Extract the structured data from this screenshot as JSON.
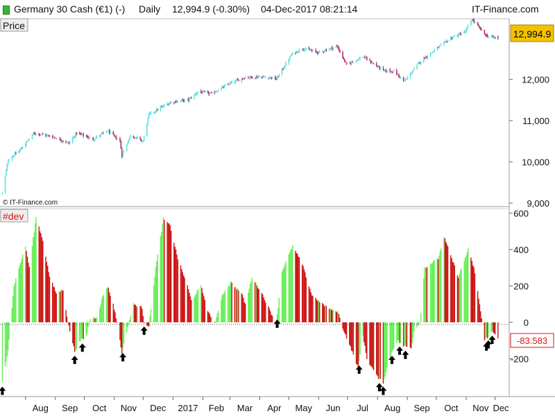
{
  "header": {
    "instrument": "Germany 30 Cash (€1) (-)",
    "interval": "Daily",
    "quote": "12,994.9 (-0.30%)",
    "datetime": "04-Dec-2017 08:21:14",
    "brand": "IT-Finance.com"
  },
  "colors": {
    "up": "#5ee0e0",
    "down": "#b0306a",
    "green": "#66ee55",
    "red": "#cc1111",
    "marker": "#e8b800"
  },
  "chart_data": [
    {
      "type": "candlestick",
      "panel_label": "Price",
      "watermark": "© IT-Finance.com",
      "yticks": [
        9000,
        10000,
        11000,
        12000
      ],
      "ytick_labels": [
        "9,000",
        "10,000",
        "11,000",
        "12,000"
      ],
      "ylim": [
        8950,
        13450
      ],
      "last_value": 12994.9,
      "last_label": "12,994.9",
      "anchors": [
        [
          "2016-07-08",
          9250
        ],
        [
          "2016-07-14",
          10050
        ],
        [
          "2016-07-25",
          10250
        ],
        [
          "2016-08-10",
          10700
        ],
        [
          "2016-08-31",
          10600
        ],
        [
          "2016-09-15",
          10450
        ],
        [
          "2016-09-23",
          10700
        ],
        [
          "2016-10-10",
          10550
        ],
        [
          "2016-10-25",
          10750
        ],
        [
          "2016-11-07",
          10500
        ],
        [
          "2016-11-09",
          10150
        ],
        [
          "2016-11-18",
          10650
        ],
        [
          "2016-12-01",
          10500
        ],
        [
          "2016-12-07",
          11150
        ],
        [
          "2016-12-30",
          11450
        ],
        [
          "2017-01-17",
          11500
        ],
        [
          "2017-01-27",
          11700
        ],
        [
          "2017-02-10",
          11650
        ],
        [
          "2017-03-01",
          11900
        ],
        [
          "2017-03-17",
          12050
        ],
        [
          "2017-04-12",
          12050
        ],
        [
          "2017-04-18",
          12000
        ],
        [
          "2017-05-04",
          12600
        ],
        [
          "2017-05-15",
          12750
        ],
        [
          "2017-06-01",
          12650
        ],
        [
          "2017-06-20",
          12800
        ],
        [
          "2017-06-30",
          12350
        ],
        [
          "2017-07-17",
          12550
        ],
        [
          "2017-08-08",
          12200
        ],
        [
          "2017-08-18",
          12200
        ],
        [
          "2017-08-29",
          11950
        ],
        [
          "2017-09-15",
          12450
        ],
        [
          "2017-10-16",
          13000
        ],
        [
          "2017-10-31",
          13150
        ],
        [
          "2017-11-07",
          13450
        ],
        [
          "2017-11-22",
          13050
        ],
        [
          "2017-12-04",
          12995
        ]
      ]
    },
    {
      "type": "histogram",
      "panel_label": "#dev",
      "yticks": [
        -200,
        0,
        200,
        400,
        600
      ],
      "ytick_labels": [
        "-200",
        "0",
        "200",
        "400",
        "600"
      ],
      "ylim": [
        -400,
        620
      ],
      "last_value": -83.583,
      "last_label": "-83.583",
      "anchors": [
        [
          "2016-07-08",
          -330
        ],
        [
          "2016-07-14",
          -150
        ],
        [
          "2016-07-20",
          200
        ],
        [
          "2016-07-28",
          350
        ],
        [
          "2016-08-01",
          420
        ],
        [
          "2016-08-05",
          300
        ],
        [
          "2016-08-12",
          580
        ],
        [
          "2016-08-19",
          450
        ],
        [
          "2016-08-26",
          250
        ],
        [
          "2016-09-02",
          160
        ],
        [
          "2016-09-09",
          180
        ],
        [
          "2016-09-14",
          0
        ],
        [
          "2016-09-21",
          -160
        ],
        [
          "2016-09-27",
          -100
        ],
        [
          "2016-10-03",
          -80
        ],
        [
          "2016-10-07",
          20
        ],
        [
          "2016-10-14",
          30
        ],
        [
          "2016-10-20",
          140
        ],
        [
          "2016-10-25",
          200
        ],
        [
          "2016-10-31",
          100
        ],
        [
          "2016-11-04",
          0
        ],
        [
          "2016-11-09",
          -170
        ],
        [
          "2016-11-14",
          -50
        ],
        [
          "2016-11-21",
          100
        ],
        [
          "2016-11-30",
          80
        ],
        [
          "2016-12-02",
          0
        ],
        [
          "2016-12-07",
          -20
        ],
        [
          "2016-12-14",
          300
        ],
        [
          "2016-12-22",
          570
        ],
        [
          "2016-12-29",
          530
        ],
        [
          "2017-01-06",
          350
        ],
        [
          "2017-01-16",
          200
        ],
        [
          "2017-01-20",
          120
        ],
        [
          "2017-01-30",
          200
        ],
        [
          "2017-02-07",
          50
        ],
        [
          "2017-02-14",
          0
        ],
        [
          "2017-02-21",
          150
        ],
        [
          "2017-03-02",
          220
        ],
        [
          "2017-03-13",
          160
        ],
        [
          "2017-03-17",
          100
        ],
        [
          "2017-03-24",
          250
        ],
        [
          "2017-04-04",
          150
        ],
        [
          "2017-04-12",
          60
        ],
        [
          "2017-04-18",
          -10
        ],
        [
          "2017-04-24",
          280
        ],
        [
          "2017-05-05",
          420
        ],
        [
          "2017-05-15",
          320
        ],
        [
          "2017-05-25",
          150
        ],
        [
          "2017-06-05",
          100
        ],
        [
          "2017-06-14",
          70
        ],
        [
          "2017-06-21",
          60
        ],
        [
          "2017-06-26",
          -30
        ],
        [
          "2017-07-05",
          -150
        ],
        [
          "2017-07-12",
          -250
        ],
        [
          "2017-07-17",
          -70
        ],
        [
          "2017-07-21",
          -200
        ],
        [
          "2017-08-01",
          -300
        ],
        [
          "2017-08-07",
          -330
        ],
        [
          "2017-08-11",
          -250
        ],
        [
          "2017-08-16",
          -160
        ],
        [
          "2017-08-22",
          -100
        ],
        [
          "2017-08-28",
          -130
        ],
        [
          "2017-09-05",
          -140
        ],
        [
          "2017-09-08",
          -50
        ],
        [
          "2017-09-14",
          0
        ],
        [
          "2017-09-19",
          300
        ],
        [
          "2017-10-03",
          350
        ],
        [
          "2017-10-09",
          470
        ],
        [
          "2017-10-17",
          350
        ],
        [
          "2017-10-24",
          250
        ],
        [
          "2017-11-03",
          400
        ],
        [
          "2017-11-09",
          300
        ],
        [
          "2017-11-15",
          100
        ],
        [
          "2017-11-20",
          -100
        ],
        [
          "2017-11-28",
          -50
        ],
        [
          "2017-12-04",
          -83.583
        ]
      ],
      "arrows": [
        "2016-07-08",
        "2016-09-21",
        "2016-09-29",
        "2016-11-10",
        "2016-12-02",
        "2017-04-19",
        "2017-07-13",
        "2017-08-03",
        "2017-08-07",
        "2017-08-16",
        "2017-08-24",
        "2017-08-30",
        "2017-11-22",
        "2017-11-24",
        "2017-11-28"
      ]
    }
  ],
  "xaxis": {
    "labels": [
      "Aug",
      "Sep",
      "Oct",
      "Nov",
      "Dec",
      "2017",
      "Feb",
      "Mar",
      "Apr",
      "May",
      "Jun",
      "Jul",
      "Aug",
      "Sep",
      "Oct",
      "Nov",
      "Dec"
    ],
    "dates": [
      "2016-08-01",
      "2016-09-01",
      "2016-10-01",
      "2016-11-01",
      "2016-12-01",
      "2017-01-01",
      "2017-02-01",
      "2017-03-01",
      "2017-04-01",
      "2017-05-01",
      "2017-06-01",
      "2017-07-01",
      "2017-08-01",
      "2017-09-01",
      "2017-10-01",
      "2017-11-01",
      "2017-12-01"
    ],
    "range": [
      "2016-07-07",
      "2017-12-07"
    ]
  }
}
